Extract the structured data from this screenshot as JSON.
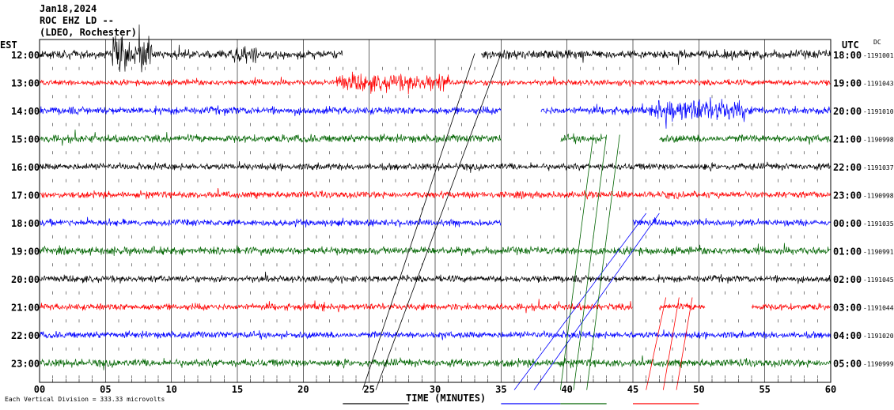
{
  "header": {
    "date": "Jan18,2024",
    "station": "ROC EHZ LD --",
    "network": "(LDEO, Rochester)"
  },
  "chart_data": {
    "type": "line",
    "title": "",
    "left_axis_label": "EST",
    "right_axis_label": "UTC",
    "dc_label": "DC",
    "xlabel": "TIME (MINUTES)",
    "xlim": [
      0,
      60
    ],
    "x_ticks": [
      "00",
      "05",
      "10",
      "15",
      "20",
      "25",
      "30",
      "35",
      "40",
      "45",
      "50",
      "55",
      "60"
    ],
    "grid": "vertical-every-minute",
    "footer_note": "Each Vertical Division = 333.33 microvolts",
    "trace_colors": [
      "#000000",
      "#ff0000",
      "#0000ff",
      "#006400"
    ],
    "rows": [
      {
        "est": "12:00",
        "utc": "18:00",
        "dc": "1191001",
        "amp": 9,
        "gaps": [
          [
            23,
            33.5
          ]
        ],
        "bursts": [
          [
            5.5,
            8.5,
            4
          ],
          [
            14.5,
            16.5,
            2
          ]
        ]
      },
      {
        "est": "13:00",
        "utc": "19:00",
        "dc": "1191043",
        "amp": 6,
        "gaps": [],
        "bursts": [
          [
            22.5,
            31,
            3
          ]
        ]
      },
      {
        "est": "14:00",
        "utc": "20:00",
        "dc": "1191010",
        "amp": 8,
        "gaps": [
          [
            35,
            38
          ]
        ],
        "bursts": [
          [
            46.5,
            53.5,
            3
          ]
        ]
      },
      {
        "est": "15:00",
        "utc": "21:00",
        "dc": "1190998",
        "amp": 8,
        "gaps": [
          [
            35,
            39.5
          ],
          [
            43,
            47
          ]
        ],
        "bursts": []
      },
      {
        "est": "16:00",
        "utc": "22:00",
        "dc": "1191037",
        "amp": 7,
        "gaps": [],
        "bursts": []
      },
      {
        "est": "17:00",
        "utc": "23:00",
        "dc": "1190998",
        "amp": 7,
        "gaps": [],
        "bursts": []
      },
      {
        "est": "18:00",
        "utc": "00:00",
        "dc": "1191035",
        "amp": 7,
        "gaps": [
          [
            35,
            45
          ]
        ],
        "bursts": []
      },
      {
        "est": "19:00",
        "utc": "01:00",
        "dc": "1190991",
        "amp": 8,
        "gaps": [],
        "bursts": []
      },
      {
        "est": "20:00",
        "utc": "02:00",
        "dc": "1191045",
        "amp": 7,
        "gaps": [],
        "bursts": []
      },
      {
        "est": "21:00",
        "utc": "03:00",
        "dc": "1191044",
        "amp": 7,
        "gaps": [
          [
            45,
            47
          ],
          [
            50.5,
            54
          ]
        ],
        "bursts": []
      },
      {
        "est": "22:00",
        "utc": "04:00",
        "dc": "1191020",
        "amp": 7,
        "gaps": [],
        "bursts": []
      },
      {
        "est": "23:00",
        "utc": "05:00",
        "dc": "1190999",
        "amp": 8,
        "gaps": [],
        "bursts": []
      }
    ],
    "diagonal_lines": [
      {
        "color": "#000000",
        "from": [
          33,
          0.3
        ],
        "to": [
          24.5,
          12.3
        ]
      },
      {
        "color": "#000000",
        "from": [
          35,
          0.3
        ],
        "to": [
          25.5,
          12.3
        ]
      },
      {
        "color": "#0000ff",
        "from": [
          46,
          6.0
        ],
        "to": [
          36,
          12.3
        ]
      },
      {
        "color": "#0000ff",
        "from": [
          47,
          6.0
        ],
        "to": [
          37.5,
          12.3
        ]
      },
      {
        "color": "#006400",
        "from": [
          42,
          3.2
        ],
        "to": [
          39.5,
          12.3
        ]
      },
      {
        "color": "#006400",
        "from": [
          43,
          3.2
        ],
        "to": [
          40.5,
          12.3
        ]
      },
      {
        "color": "#006400",
        "from": [
          44,
          3.2
        ],
        "to": [
          41.5,
          12.3
        ]
      },
      {
        "color": "#ff0000",
        "from": [
          47.5,
          9.0
        ],
        "to": [
          46,
          12.3
        ]
      },
      {
        "color": "#ff0000",
        "from": [
          48.5,
          9.0
        ],
        "to": [
          47.3,
          12.3
        ]
      },
      {
        "color": "#ff0000",
        "from": [
          49.5,
          9.0
        ],
        "to": [
          48.3,
          12.3
        ]
      }
    ],
    "bottom_segments": [
      {
        "color": "#000000",
        "x": [
          23,
          28
        ]
      },
      {
        "color": "#0000ff",
        "x": [
          35,
          39.5
        ]
      },
      {
        "color": "#006400",
        "x": [
          39.5,
          43
        ]
      },
      {
        "color": "#ff0000",
        "x": [
          45,
          50
        ]
      }
    ]
  }
}
